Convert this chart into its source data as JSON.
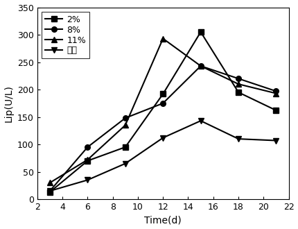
{
  "x": [
    3,
    6,
    9,
    12,
    15,
    18,
    21
  ],
  "series": {
    "2%": [
      13,
      70,
      95,
      192,
      305,
      195,
      162
    ],
    "8%": [
      15,
      95,
      148,
      175,
      243,
      220,
      197
    ],
    "11%": [
      30,
      72,
      135,
      293,
      243,
      210,
      193
    ],
    "对照": [
      15,
      35,
      65,
      112,
      143,
      110,
      107
    ]
  },
  "markers": {
    "2%": "s",
    "8%": "o",
    "11%": "^",
    "对照": "v"
  },
  "title": "",
  "xlabel": "Time(d)",
  "ylabel": "Lip(U/L)",
  "xlim": [
    2,
    22
  ],
  "ylim": [
    0,
    350
  ],
  "xticks": [
    2,
    4,
    6,
    8,
    10,
    12,
    14,
    16,
    18,
    20,
    22
  ],
  "yticks": [
    0,
    50,
    100,
    150,
    200,
    250,
    300,
    350
  ],
  "legend_order": [
    "2%",
    "8%",
    "11%",
    "对照"
  ]
}
